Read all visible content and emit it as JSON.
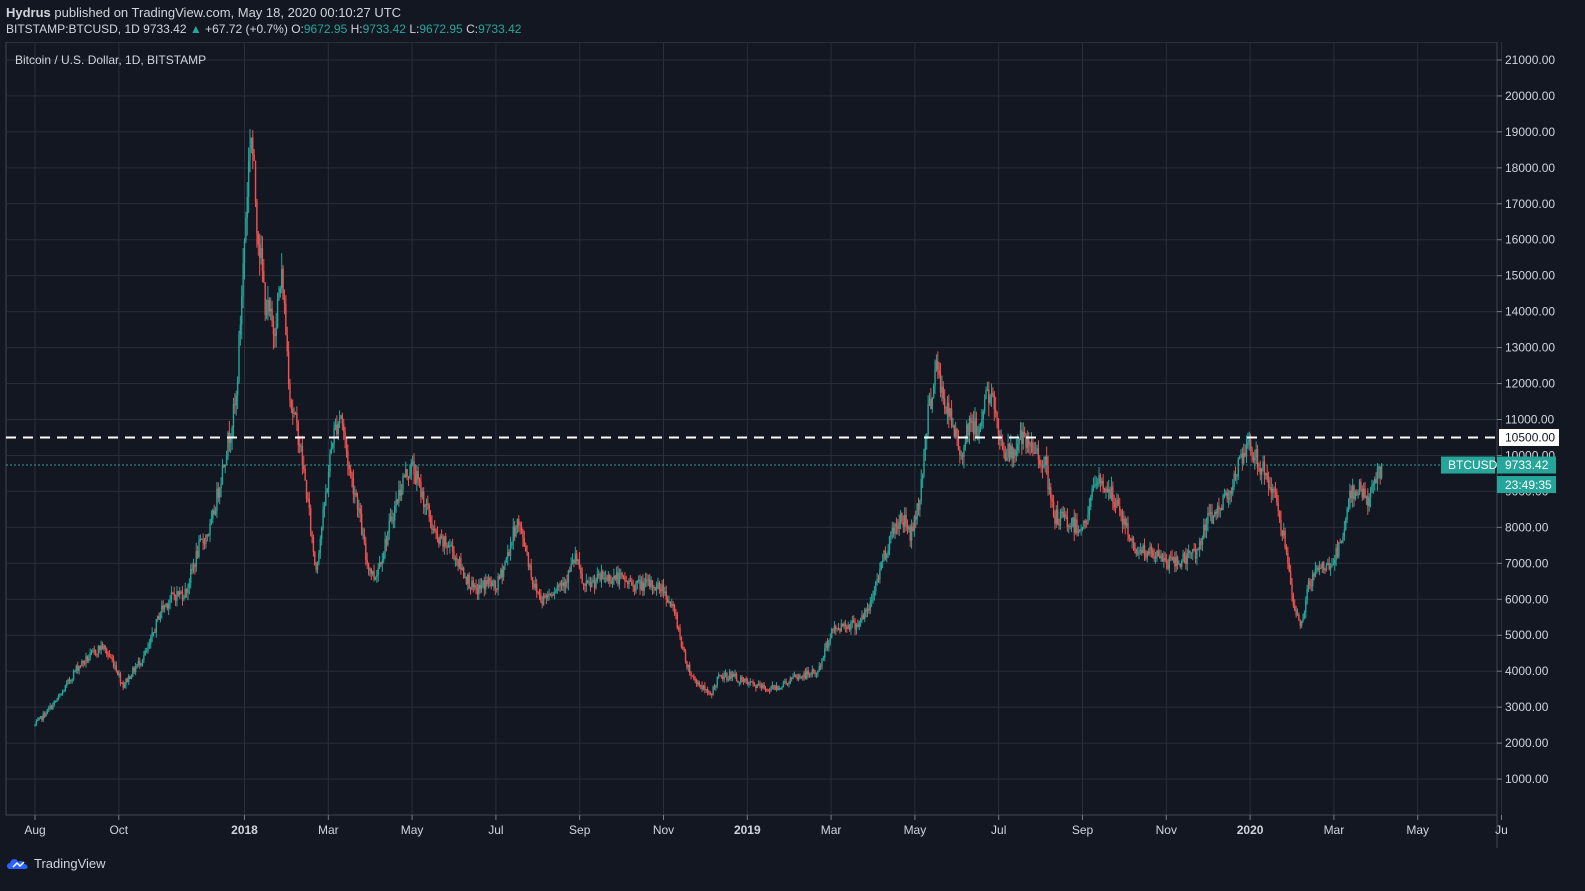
{
  "header": {
    "author": "Hydrus",
    "published": "published on TradingView.com, May 18, 2020 00:10:27 UTC",
    "symbol_tf": "BITSTAMP:BTCUSD, 1D",
    "last": "9733.42",
    "change": "+67.72 (+0.7%)",
    "o_label": "O:",
    "o_val": "9672.95",
    "h_label": "H:",
    "h_val": "9733.42",
    "l_label": "L:",
    "l_val": "9672.95",
    "c_label": "C:",
    "c_val": "9733.42"
  },
  "footer": {
    "brand": "TradingView"
  },
  "chart_data": {
    "type": "candlestick",
    "title": "Bitcoin / U.S. Dollar, 1D, BITSTAMP",
    "ylim": [
      0,
      21500
    ],
    "y_ticks": [
      "1000.00",
      "2000.00",
      "3000.00",
      "4000.00",
      "5000.00",
      "6000.00",
      "7000.00",
      "8000.00",
      "9000.00",
      "10000.00",
      "11000.00",
      "12000.00",
      "13000.00",
      "14000.00",
      "15000.00",
      "16000.00",
      "17000.00",
      "18000.00",
      "19000.00",
      "20000.00",
      "21000.00"
    ],
    "x_ticks": [
      "Aug",
      "Oct",
      "2018",
      "Mar",
      "May",
      "Jul",
      "Sep",
      "Nov",
      "2019",
      "Mar",
      "May",
      "Jul",
      "Sep",
      "Nov",
      "2020",
      "Mar",
      "May",
      "Ju"
    ],
    "x_tick_months": [
      0.5,
      2.5,
      5.5,
      7.5,
      9.5,
      11.5,
      13.5,
      15.5,
      17.5,
      19.5,
      21.5,
      23.5,
      25.5,
      27.5,
      29.5,
      31.5,
      33.5,
      35.5
    ],
    "price_path": [
      [
        0,
        2500
      ],
      [
        0.3,
        2900
      ],
      [
        0.6,
        3300
      ],
      [
        1.0,
        4100
      ],
      [
        1.3,
        4400
      ],
      [
        1.6,
        4700
      ],
      [
        1.9,
        4200
      ],
      [
        2.1,
        3600
      ],
      [
        2.4,
        4100
      ],
      [
        2.7,
        4600
      ],
      [
        3.0,
        5700
      ],
      [
        3.3,
        6100
      ],
      [
        3.6,
        6200
      ],
      [
        3.9,
        7400
      ],
      [
        4.2,
        8000
      ],
      [
        4.5,
        9800
      ],
      [
        4.8,
        11500
      ],
      [
        5.0,
        16000
      ],
      [
        5.15,
        19200
      ],
      [
        5.3,
        16500
      ],
      [
        5.5,
        14200
      ],
      [
        5.7,
        13500
      ],
      [
        5.9,
        15000
      ],
      [
        6.1,
        11500
      ],
      [
        6.3,
        10500
      ],
      [
        6.5,
        8800
      ],
      [
        6.7,
        6800
      ],
      [
        6.9,
        8500
      ],
      [
        7.1,
        10500
      ],
      [
        7.3,
        11200
      ],
      [
        7.5,
        9600
      ],
      [
        7.7,
        8700
      ],
      [
        7.9,
        7100
      ],
      [
        8.1,
        6600
      ],
      [
        8.3,
        7300
      ],
      [
        8.5,
        8200
      ],
      [
        8.8,
        9400
      ],
      [
        9.0,
        9700
      ],
      [
        9.3,
        8700
      ],
      [
        9.6,
        7600
      ],
      [
        9.9,
        7500
      ],
      [
        10.2,
        6800
      ],
      [
        10.5,
        6200
      ],
      [
        10.8,
        6500
      ],
      [
        11.0,
        6300
      ],
      [
        11.3,
        7300
      ],
      [
        11.5,
        8200
      ],
      [
        11.7,
        7500
      ],
      [
        11.9,
        6400
      ],
      [
        12.1,
        6000
      ],
      [
        12.4,
        6300
      ],
      [
        12.7,
        6600
      ],
      [
        12.9,
        7200
      ],
      [
        13.1,
        6300
      ],
      [
        13.5,
        6600
      ],
      [
        13.9,
        6600
      ],
      [
        14.3,
        6400
      ],
      [
        14.7,
        6400
      ],
      [
        15.0,
        6300
      ],
      [
        15.3,
        5500
      ],
      [
        15.5,
        4400
      ],
      [
        15.7,
        3800
      ],
      [
        15.9,
        3600
      ],
      [
        16.1,
        3300
      ],
      [
        16.3,
        3800
      ],
      [
        16.6,
        3900
      ],
      [
        16.9,
        3700
      ],
      [
        17.2,
        3600
      ],
      [
        17.5,
        3500
      ],
      [
        17.8,
        3600
      ],
      [
        18.1,
        3800
      ],
      [
        18.4,
        3900
      ],
      [
        18.7,
        4000
      ],
      [
        19.0,
        5100
      ],
      [
        19.3,
        5300
      ],
      [
        19.6,
        5300
      ],
      [
        19.9,
        5700
      ],
      [
        20.2,
        7000
      ],
      [
        20.5,
        8000
      ],
      [
        20.7,
        8300
      ],
      [
        20.9,
        7800
      ],
      [
        21.1,
        8700
      ],
      [
        21.3,
        11000
      ],
      [
        21.5,
        12500
      ],
      [
        21.7,
        11500
      ],
      [
        21.9,
        10800
      ],
      [
        22.1,
        10000
      ],
      [
        22.3,
        11000
      ],
      [
        22.5,
        10600
      ],
      [
        22.7,
        11800
      ],
      [
        22.9,
        11300
      ],
      [
        23.1,
        10200
      ],
      [
        23.3,
        10000
      ],
      [
        23.5,
        10500
      ],
      [
        23.7,
        10200
      ],
      [
        23.9,
        10100
      ],
      [
        24.1,
        9800
      ],
      [
        24.3,
        8300
      ],
      [
        24.6,
        8200
      ],
      [
        24.9,
        8000
      ],
      [
        25.1,
        8200
      ],
      [
        25.3,
        9300
      ],
      [
        25.6,
        9100
      ],
      [
        25.9,
        8400
      ],
      [
        26.2,
        7500
      ],
      [
        26.5,
        7300
      ],
      [
        26.8,
        7200
      ],
      [
        27.1,
        7000
      ],
      [
        27.4,
        7100
      ],
      [
        27.7,
        7300
      ],
      [
        28.0,
        8200
      ],
      [
        28.3,
        8600
      ],
      [
        28.6,
        9300
      ],
      [
        28.8,
        9900
      ],
      [
        29.0,
        10200
      ],
      [
        29.2,
        9800
      ],
      [
        29.4,
        9400
      ],
      [
        29.6,
        8800
      ],
      [
        29.8,
        7800
      ],
      [
        30.0,
        6000
      ],
      [
        30.2,
        5200
      ],
      [
        30.4,
        6400
      ],
      [
        30.6,
        6800
      ],
      [
        30.8,
        6900
      ],
      [
        31.0,
        7100
      ],
      [
        31.2,
        7600
      ],
      [
        31.4,
        8900
      ],
      [
        31.6,
        9200
      ],
      [
        31.8,
        8700
      ],
      [
        32.0,
        9300
      ],
      [
        32.15,
        9733
      ]
    ],
    "last_price": 9733.42,
    "level_line": 10500,
    "labels": {
      "level": "10500.00",
      "symbol": "BTCUSD",
      "price": "9733.42",
      "countdown": "23:49:35"
    },
    "colors": {
      "up": "#26a69a",
      "down": "#ef5350",
      "grid": "#2a2e39",
      "bg": "#131722",
      "text": "#d1d4dc",
      "level": "#ffffff",
      "teal_tag": "#26a69a"
    }
  }
}
